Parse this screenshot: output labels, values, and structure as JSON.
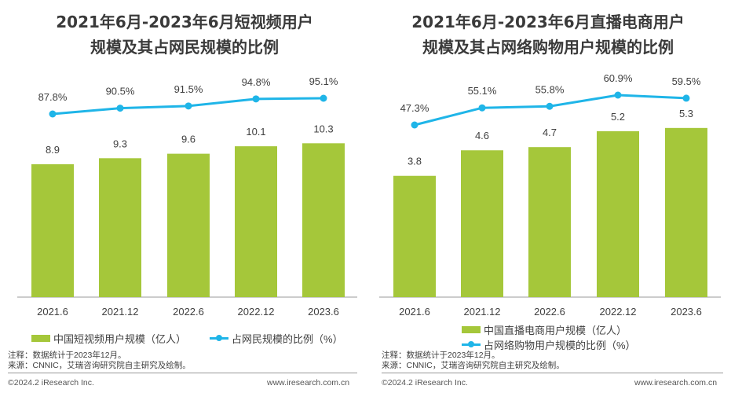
{
  "colors": {
    "bar": "#A5C73A",
    "line": "#1FB5E8",
    "text": "#404040"
  },
  "chart_data": [
    {
      "type": "bar+line",
      "title": "2021年6月-2023年6月短视频用户规模及其占网民规模的比例",
      "title_lines": [
        "2021年6月-2023年6月短视频用户",
        "规模及其占网民规模的比例"
      ],
      "categories": [
        "2021.6",
        "2021.12",
        "2022.6",
        "2022.12",
        "2023.6"
      ],
      "series": [
        {
          "name": "中国短视频用户规模（亿人）",
          "type": "bar",
          "values": [
            8.9,
            9.3,
            9.6,
            10.1,
            10.3
          ],
          "labels": [
            "8.9",
            "9.3",
            "9.6",
            "10.1",
            "10.3"
          ]
        },
        {
          "name": "占网民规模的比例（%）",
          "type": "line",
          "values": [
            87.8,
            90.5,
            91.5,
            94.8,
            95.1
          ],
          "labels": [
            "87.8%",
            "90.5%",
            "91.5%",
            "94.8%",
            "95.1%"
          ]
        }
      ],
      "note": "注释：数据统计于2023年12月。",
      "source": "来源：CNNIC，艾瑞咨询研究院自主研究及绘制。"
    },
    {
      "type": "bar+line",
      "title": "2021年6月-2023年6月直播电商用户规模及其占网络购物用户规模的比例",
      "title_lines": [
        "2021年6月-2023年6月直播电商用户",
        "规模及其占网络购物用户规模的比例"
      ],
      "categories": [
        "2021.6",
        "2021.12",
        "2022.6",
        "2022.12",
        "2023.6"
      ],
      "series": [
        {
          "name": "中国直播电商用户规模（亿人）",
          "type": "bar",
          "values": [
            3.8,
            4.6,
            4.7,
            5.2,
            5.3
          ],
          "labels": [
            "3.8",
            "4.6",
            "4.7",
            "5.2",
            "5.3"
          ]
        },
        {
          "name": "占网络购物用户规模的比例（%）",
          "type": "line",
          "values": [
            47.3,
            55.1,
            55.8,
            60.9,
            59.5
          ],
          "labels": [
            "47.3%",
            "55.1%",
            "55.8%",
            "60.9%",
            "59.5%"
          ]
        }
      ],
      "note": "注释：数据统计于2023年12月。",
      "source": "来源：CNNIC，艾瑞咨询研究院自主研究及绘制。"
    }
  ],
  "footer": {
    "copyright": "©2024.2 iResearch Inc.",
    "website": "www.iresearch.com.cn"
  }
}
